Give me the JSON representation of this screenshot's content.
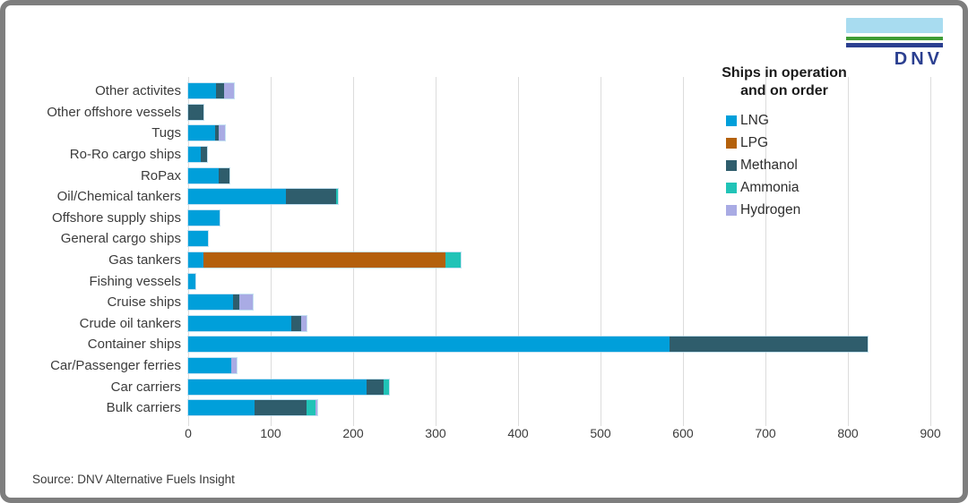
{
  "logo": {
    "text": "DNV",
    "sky": "#A8DCF0",
    "green": "#3F9C35",
    "blue": "#2B3F90",
    "text_color": "#2B3F90"
  },
  "legend": {
    "title": "Ships in operation\nand on order"
  },
  "source": {
    "label": "Source: DNV Alternative Fuels Insight"
  },
  "colors": {
    "lng": "#009FDA",
    "lpg": "#B4610B",
    "methanol": "#2F5D6C",
    "ammonia": "#21C3B7",
    "hydrogen": "#A9ABE4",
    "gridline": "#dcdcdc"
  },
  "chart_data": {
    "type": "bar",
    "orientation": "horizontal",
    "stacked": true,
    "title": "Ships in operation and on order",
    "categories": [
      "Other activites",
      "Other offshore vessels",
      "Tugs",
      "Ro-Ro cargo ships",
      "RoPax",
      "Oil/Chemical tankers",
      "Offshore supply ships",
      "General cargo ships",
      "Gas tankers",
      "Fishing vessels",
      "Cruise ships",
      "Crude oil tankers",
      "Container ships",
      "Car/Passenger ferries",
      "Car carriers",
      "Bulk carriers"
    ],
    "series": [
      {
        "name": "LNG",
        "color": "#009FDA",
        "values": [
          34,
          0,
          33,
          15,
          37,
          118,
          38,
          24,
          19,
          9,
          54,
          125,
          584,
          52,
          216,
          80
        ]
      },
      {
        "name": "LPG",
        "color": "#B4610B",
        "values": [
          0,
          0,
          0,
          0,
          0,
          0,
          0,
          0,
          293,
          0,
          0,
          0,
          0,
          0,
          0,
          0
        ]
      },
      {
        "name": "Methanol",
        "color": "#2F5D6C",
        "values": [
          9,
          18,
          4,
          8,
          13,
          61,
          0,
          0,
          0,
          0,
          8,
          12,
          240,
          0,
          21,
          63
        ]
      },
      {
        "name": "Ammonia",
        "color": "#21C3B7",
        "values": [
          0,
          0,
          0,
          0,
          0,
          3,
          0,
          0,
          18,
          0,
          0,
          0,
          0,
          0,
          6,
          11
        ]
      },
      {
        "name": "Hydrogen",
        "color": "#A9ABE4",
        "values": [
          13,
          0,
          8,
          0,
          0,
          0,
          0,
          0,
          0,
          0,
          16,
          7,
          0,
          7,
          0,
          3
        ]
      }
    ],
    "xlim": [
      0,
      900
    ],
    "xticks": [
      0,
      100,
      200,
      300,
      400,
      500,
      600,
      700,
      800,
      900
    ],
    "grid": true,
    "legend_position": "upper right",
    "source": "Source: DNV Alternative Fuels Insight"
  }
}
